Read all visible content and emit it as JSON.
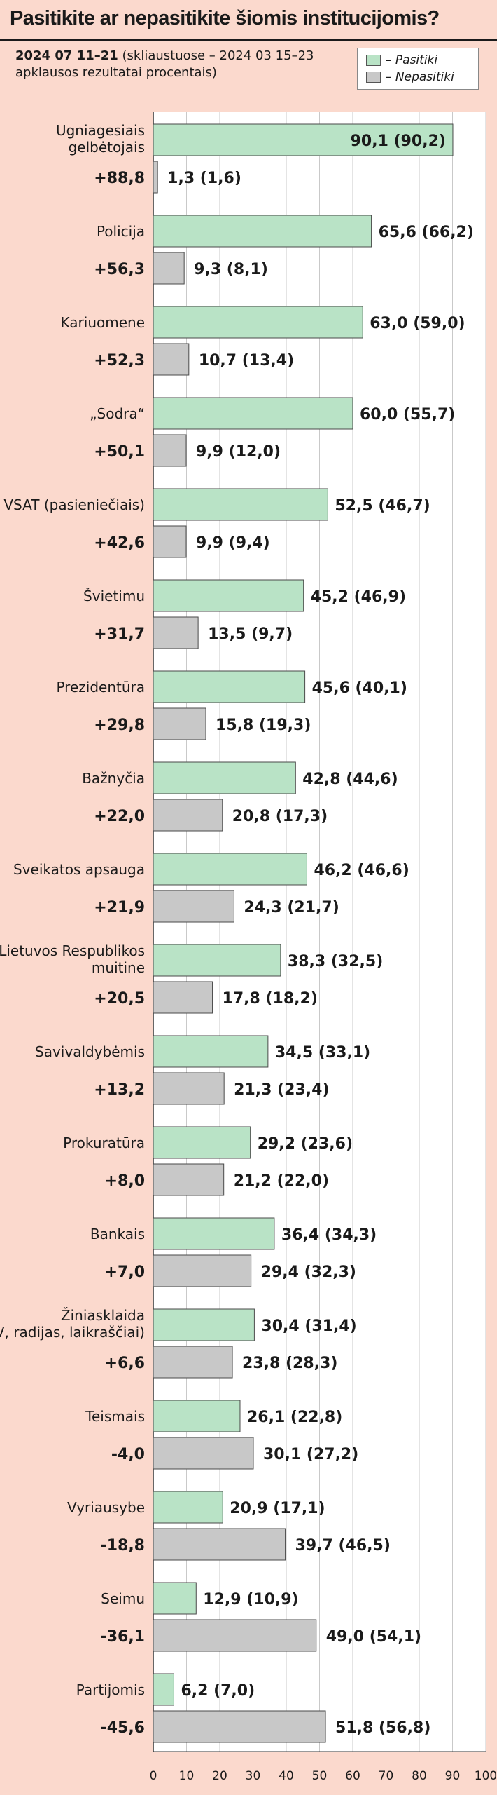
{
  "header": {
    "title": "Pasitikite ar nepasitikite šiomis institucijomis?",
    "subtitle_date": "2024 07 11–21",
    "subtitle_rest": " (skliaustuose – 2024 03 15–23",
    "subtitle_line2": "apklausos rezultatai procentais)"
  },
  "legend": {
    "trust_label": "– Pasitiki",
    "distrust_label": "– Nepasitiki"
  },
  "colors": {
    "background": "#fbd9cd",
    "trust_bar": "#b9e3c6",
    "distrust_bar": "#c8c8c8",
    "plot_area": "#ffffff",
    "bar_border": "#4a4a4a"
  },
  "chart_data": {
    "type": "bar",
    "orientation": "horizontal",
    "title": "Pasitikite ar nepasitikite šiomis institucijomis?",
    "xlim": [
      0,
      100
    ],
    "x_ticks": [
      "0",
      "10",
      "20",
      "30",
      "40",
      "50",
      "60",
      "70",
      "80",
      "90",
      "100"
    ],
    "grid": true,
    "categories": [
      {
        "label": [
          "Ugniagesiais",
          "gelbėtojais"
        ],
        "diff": "+88,8",
        "trust": 90.1,
        "trust_label": "90,1 (90,2)",
        "distrust": 1.3,
        "distrust_label": "1,3 (1,6)"
      },
      {
        "label": [
          "Policija"
        ],
        "diff": "+56,3",
        "trust": 65.6,
        "trust_label": "65,6 (66,2)",
        "distrust": 9.3,
        "distrust_label": "9,3 (8,1)"
      },
      {
        "label": [
          "Kariuomene"
        ],
        "diff": "+52,3",
        "trust": 63.0,
        "trust_label": "63,0 (59,0)",
        "distrust": 10.7,
        "distrust_label": "10,7 (13,4)"
      },
      {
        "label": [
          "„Sodra“"
        ],
        "diff": "+50,1",
        "trust": 60.0,
        "trust_label": "60,0 (55,7)",
        "distrust": 9.9,
        "distrust_label": "9,9 (12,0)"
      },
      {
        "label": [
          "VSAT (pasieniečiais)"
        ],
        "diff": "+42,6",
        "trust": 52.5,
        "trust_label": "52,5 (46,7)",
        "distrust": 9.9,
        "distrust_label": "9,9 (9,4)"
      },
      {
        "label": [
          "Švietimu"
        ],
        "diff": "+31,7",
        "trust": 45.2,
        "trust_label": "45,2 (46,9)",
        "distrust": 13.5,
        "distrust_label": "13,5 (9,7)"
      },
      {
        "label": [
          "Prezidentūra"
        ],
        "diff": "+29,8",
        "trust": 45.6,
        "trust_label": "45,6 (40,1)",
        "distrust": 15.8,
        "distrust_label": "15,8 (19,3)"
      },
      {
        "label": [
          "Bažnyčia"
        ],
        "diff": "+22,0",
        "trust": 42.8,
        "trust_label": "42,8 (44,6)",
        "distrust": 20.8,
        "distrust_label": "20,8 (17,3)"
      },
      {
        "label": [
          "Sveikatos apsauga"
        ],
        "diff": "+21,9",
        "trust": 46.2,
        "trust_label": "46,2 (46,6)",
        "distrust": 24.3,
        "distrust_label": "24,3 (21,7)"
      },
      {
        "label": [
          "Lietuvos Respublikos",
          "muitine"
        ],
        "diff": "+20,5",
        "trust": 38.3,
        "trust_label": "38,3 (32,5)",
        "distrust": 17.8,
        "distrust_label": "17,8 (18,2)"
      },
      {
        "label": [
          "Savivaldybėmis"
        ],
        "diff": "+13,2",
        "trust": 34.5,
        "trust_label": "34,5 (33,1)",
        "distrust": 21.3,
        "distrust_label": "21,3 (23,4)"
      },
      {
        "label": [
          "Prokuratūra"
        ],
        "diff": "+8,0",
        "trust": 29.2,
        "trust_label": "29,2 (23,6)",
        "distrust": 21.2,
        "distrust_label": "21,2 (22,0)"
      },
      {
        "label": [
          "Bankais"
        ],
        "diff": "+7,0",
        "trust": 36.4,
        "trust_label": "36,4 (34,3)",
        "distrust": 29.4,
        "distrust_label": "29,4 (32,3)"
      },
      {
        "label": [
          "Žiniasklaida",
          "(TV, radijas, laikraščiai)"
        ],
        "diff": "+6,6",
        "trust": 30.4,
        "trust_label": "30,4 (31,4)",
        "distrust": 23.8,
        "distrust_label": "23,8 (28,3)"
      },
      {
        "label": [
          "Teismais"
        ],
        "diff": "-4,0",
        "trust": 26.1,
        "trust_label": "26,1 (22,8)",
        "distrust": 30.1,
        "distrust_label": "30,1 (27,2)"
      },
      {
        "label": [
          "Vyriausybe"
        ],
        "diff": "-18,8",
        "trust": 20.9,
        "trust_label": "20,9 (17,1)",
        "distrust": 39.7,
        "distrust_label": "39,7 (46,5)"
      },
      {
        "label": [
          "Seimu"
        ],
        "diff": "-36,1",
        "trust": 12.9,
        "trust_label": "12,9 (10,9)",
        "distrust": 49.0,
        "distrust_label": "49,0 (54,1)"
      },
      {
        "label": [
          "Partijomis"
        ],
        "diff": "-45,6",
        "trust": 6.2,
        "trust_label": "6,2 (7,0)",
        "distrust": 51.8,
        "distrust_label": "51,8 (56,8)"
      }
    ],
    "series": [
      {
        "name": "Pasitiki",
        "key": "trust"
      },
      {
        "name": "Nepasitiki",
        "key": "distrust"
      }
    ]
  }
}
